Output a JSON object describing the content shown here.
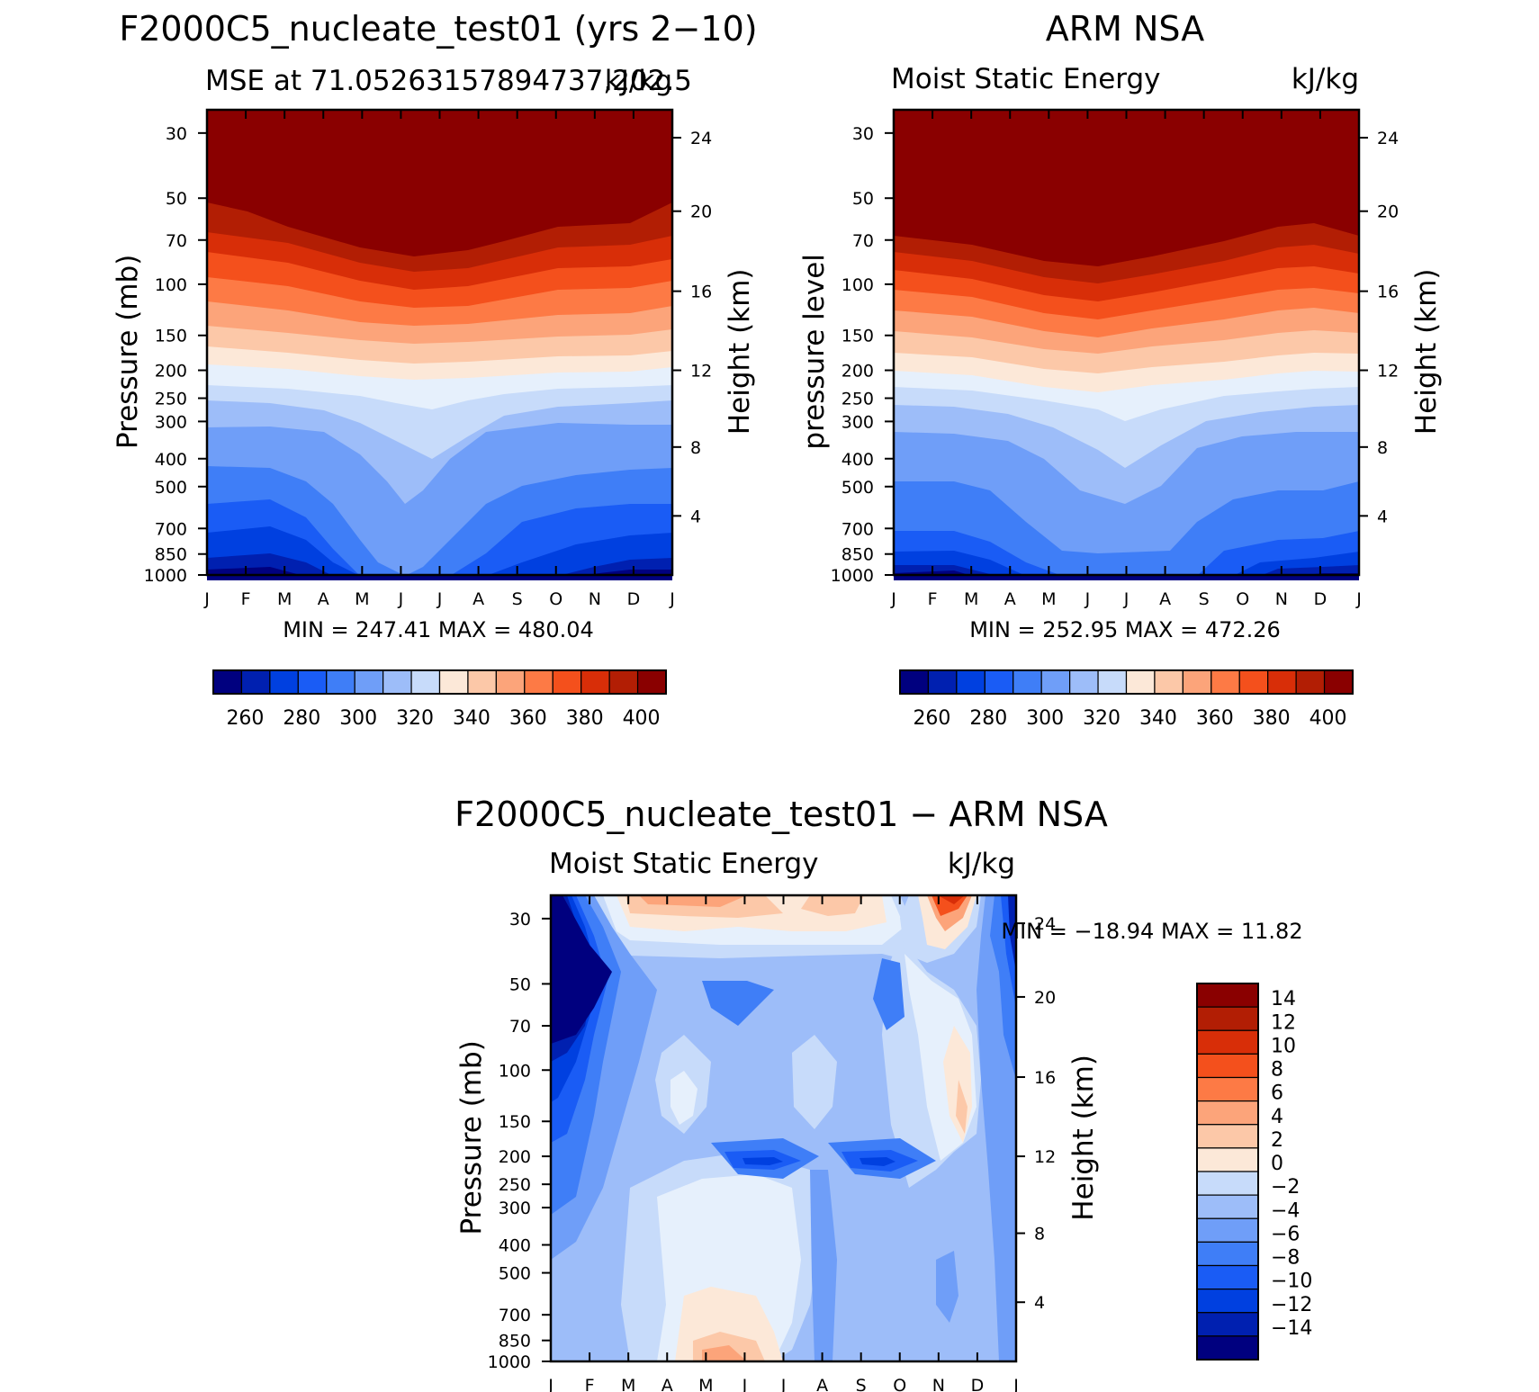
{
  "chart_data": [
    {
      "type": "heatmap",
      "id": "model",
      "title": "F2000C5_nucleate_test01 (yrs 2−10)",
      "subtitle_left": "MSE at 71.05263157894737,202.5",
      "subtitle_right": "kJ/kg",
      "ylabel": "Pressure (mb)",
      "ylabel_right": "Height (km)",
      "x_ticks": [
        "J",
        "F",
        "M",
        "A",
        "M",
        "J",
        "J",
        "A",
        "S",
        "O",
        "N",
        "D",
        "J"
      ],
      "pressure_ticks": [
        "30",
        "50",
        "70",
        "100",
        "150",
        "200",
        "250",
        "300",
        "400",
        "500",
        "700",
        "850",
        "1000"
      ],
      "height_ticks": [
        "24",
        "20",
        "16",
        "12",
        "8",
        "4"
      ],
      "min_max": "MIN =  247.41  MAX =  480.04",
      "levels": [
        255,
        265,
        275,
        285,
        295,
        305,
        315,
        325,
        335,
        345,
        355,
        365,
        375,
        385,
        395
      ],
      "colorbar_labels": [
        "260",
        "280",
        "300",
        "320",
        "340",
        "360",
        "380",
        "400"
      ]
    },
    {
      "type": "heatmap",
      "id": "obs",
      "title": "ARM NSA",
      "subtitle_left": "Moist Static Energy",
      "subtitle_right": "kJ/kg",
      "ylabel": "pressure level",
      "ylabel_right": "Height (km)",
      "x_ticks": [
        "J",
        "F",
        "M",
        "A",
        "M",
        "J",
        "J",
        "A",
        "S",
        "O",
        "N",
        "D",
        "J"
      ],
      "pressure_ticks": [
        "30",
        "50",
        "70",
        "100",
        "150",
        "200",
        "250",
        "300",
        "400",
        "500",
        "700",
        "850",
        "1000"
      ],
      "height_ticks": [
        "24",
        "20",
        "16",
        "12",
        "8",
        "4"
      ],
      "min_max": "MIN =  252.95  MAX =  472.26",
      "levels": [
        255,
        265,
        275,
        285,
        295,
        305,
        315,
        325,
        335,
        345,
        355,
        365,
        375,
        385,
        395
      ],
      "colorbar_labels": [
        "260",
        "280",
        "300",
        "320",
        "340",
        "360",
        "380",
        "400"
      ]
    },
    {
      "type": "heatmap",
      "id": "diff",
      "title": "F2000C5_nucleate_test01 − ARM NSA",
      "subtitle_left": "Moist Static Energy",
      "subtitle_right": "kJ/kg",
      "ylabel": "Pressure (mb)",
      "ylabel_right": "Height (km)",
      "x_ticks": [
        "J",
        "F",
        "M",
        "A",
        "M",
        "J",
        "J",
        "A",
        "S",
        "O",
        "N",
        "D",
        "J"
      ],
      "pressure_ticks": [
        "30",
        "50",
        "70",
        "100",
        "150",
        "200",
        "250",
        "300",
        "400",
        "500",
        "700",
        "850",
        "1000"
      ],
      "height_ticks": [
        "24",
        "20",
        "16",
        "12",
        "8",
        "4"
      ],
      "min_max": "MIN = −18.94  MAX =   11.82",
      "levels": [
        -14,
        -12,
        -10,
        -8,
        -6,
        -4,
        -2,
        0,
        2,
        4,
        6,
        8,
        10,
        12,
        14
      ],
      "colorbar_labels": [
        "14",
        "12",
        "10",
        "8",
        "6",
        "4",
        "2",
        "0",
        "−2",
        "−4",
        "−6",
        "−8",
        "−10",
        "−12",
        "−14"
      ]
    }
  ],
  "palette": [
    "#00007f",
    "#0020b0",
    "#0040e0",
    "#1a5cf5",
    "#3f7ef7",
    "#6f9ef8",
    "#9dbdf9",
    "#c7dbfa",
    "#e6f0fc",
    "#fce8d8",
    "#fcc8a8",
    "#fca47a",
    "#fd7a45",
    "#f4501c",
    "#d82e08",
    "#b21e04",
    "#8a0000"
  ]
}
